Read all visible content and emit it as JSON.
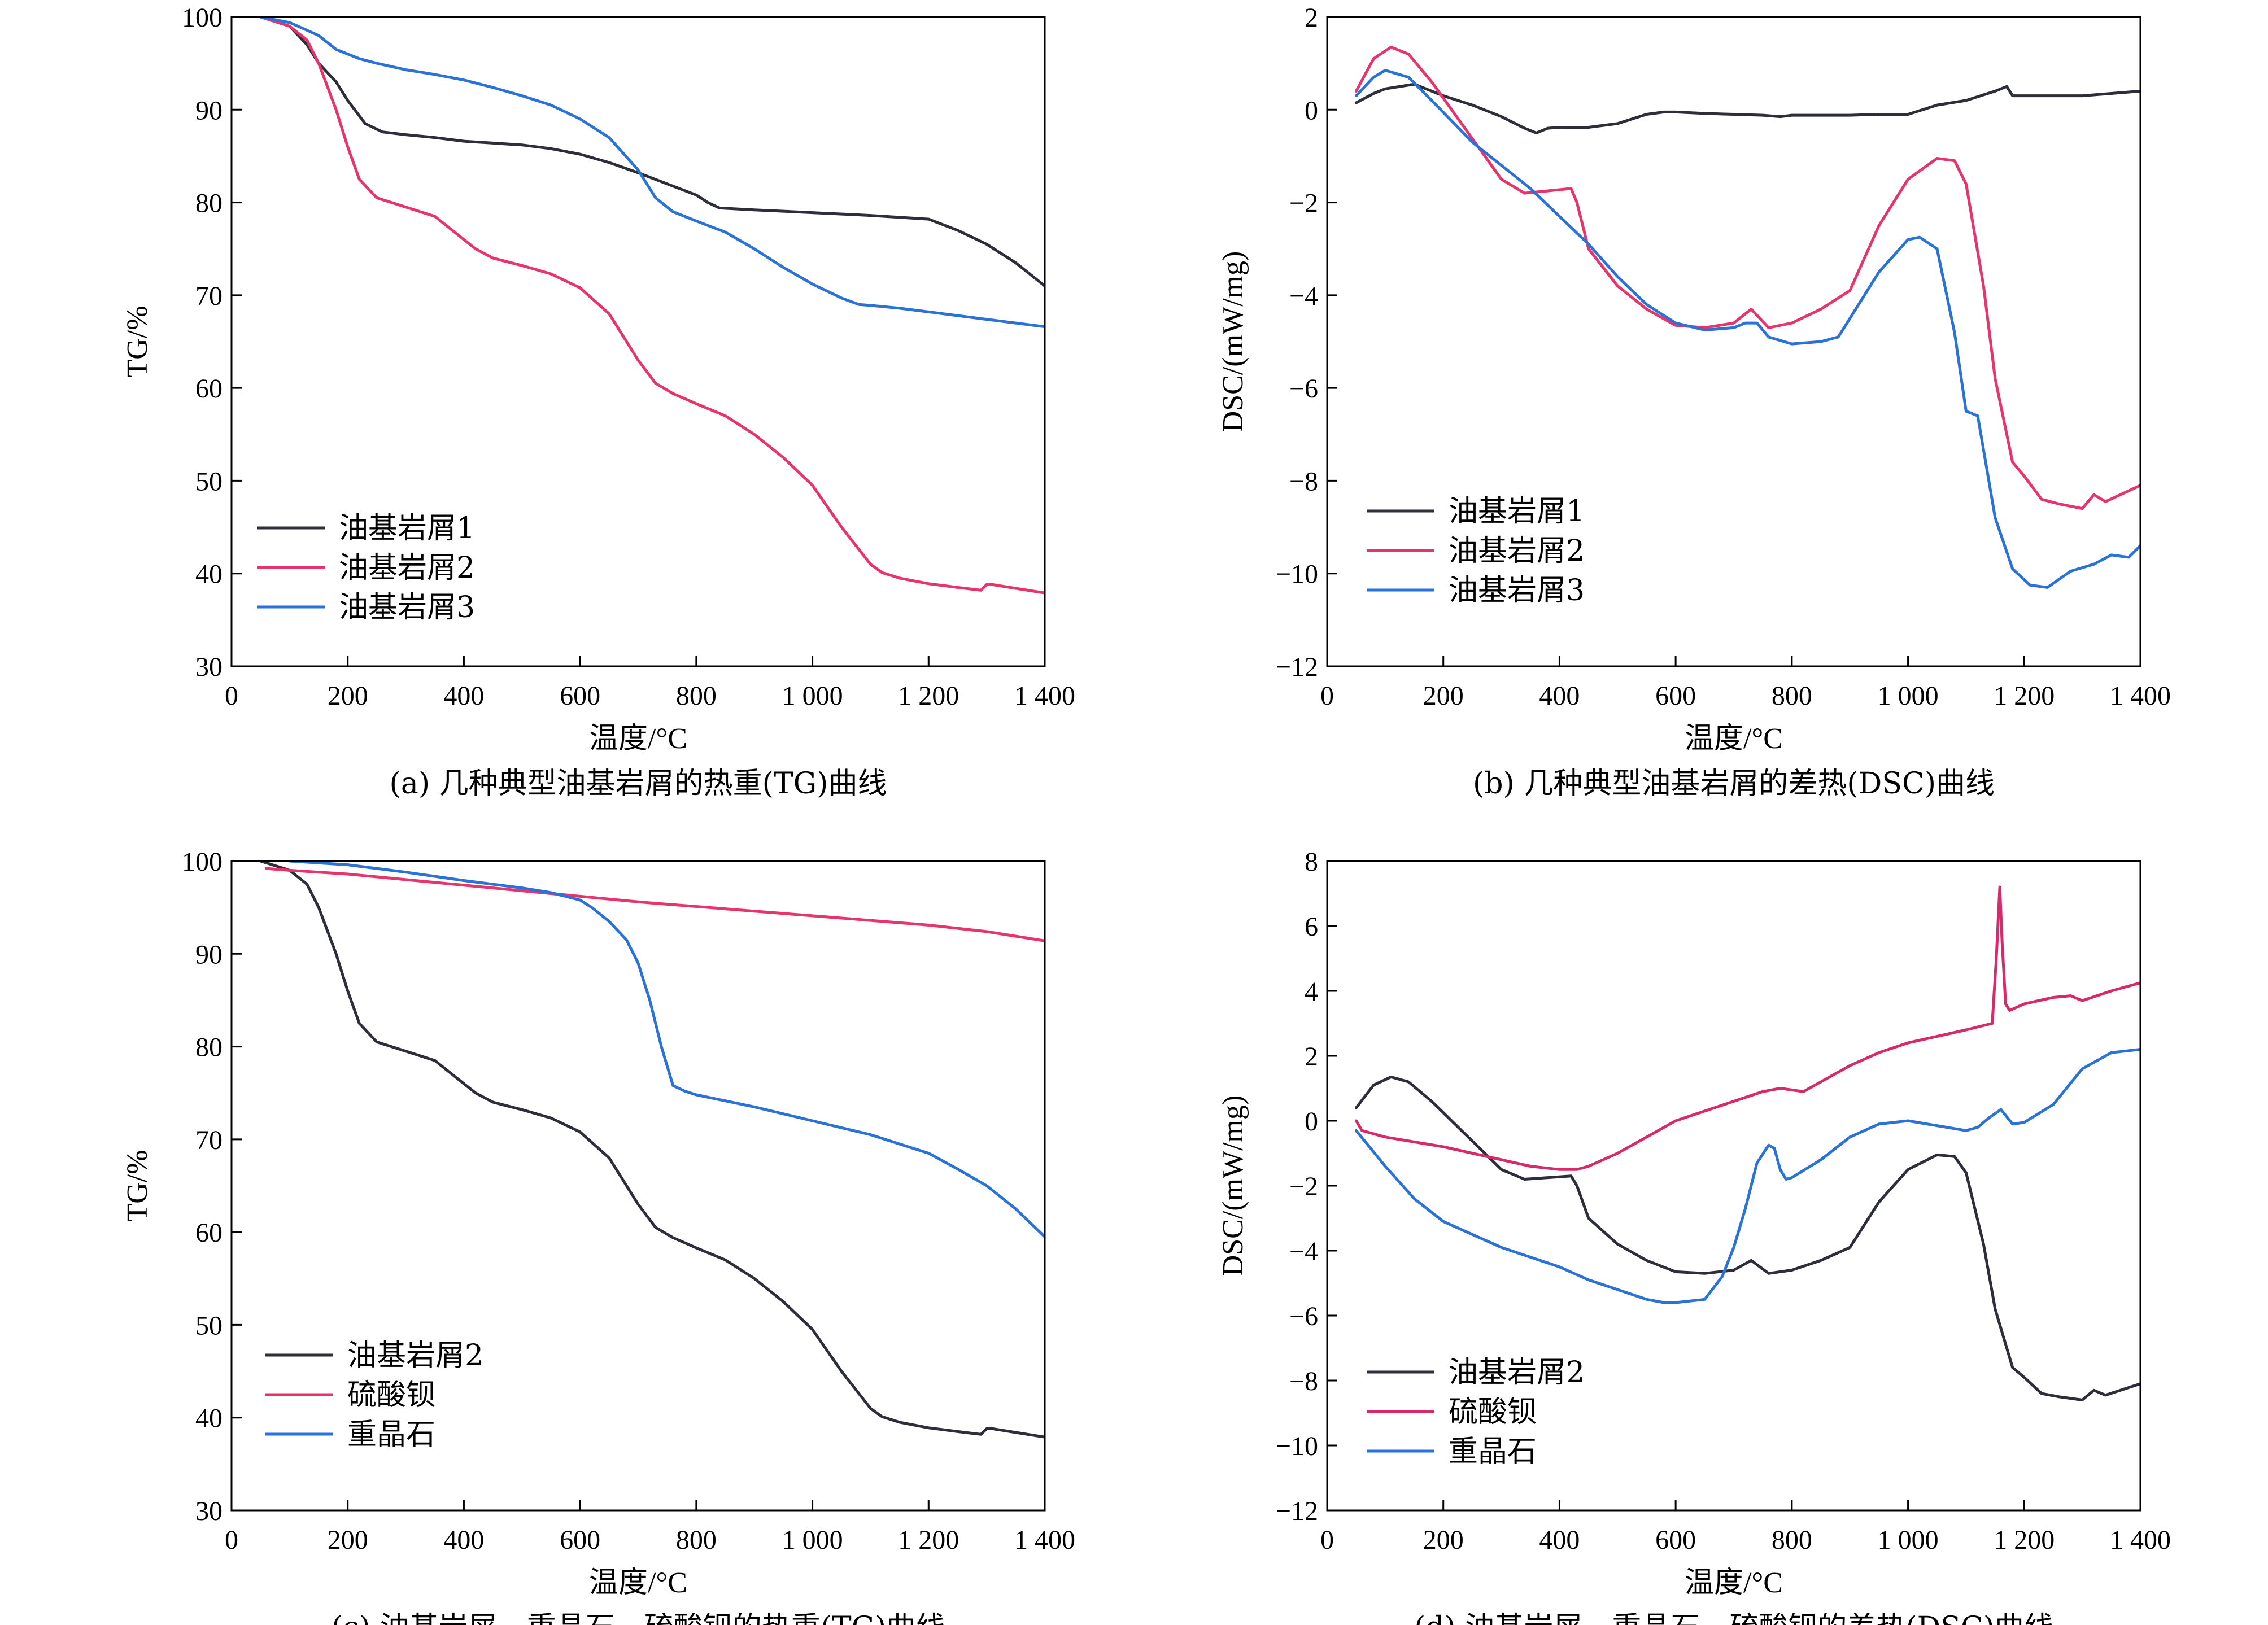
{
  "colors": {
    "dark": "#2e2e3a",
    "pink": "#e8336b",
    "blue": "#2a72d8",
    "magenta": "#d82a6a"
  },
  "chart_data": [
    {
      "type": "line",
      "title": "(a) 几种典型油基岩屑的热重(TG)曲线",
      "xlabel": "温度/°C",
      "ylabel": "TG/%",
      "xlim": [
        0,
        1400
      ],
      "ylim": [
        30,
        100
      ],
      "xticks": [
        0,
        200,
        400,
        600,
        800,
        1000,
        1200,
        1400
      ],
      "xtick_labels": [
        "0",
        "200",
        "400",
        "600",
        "800",
        "1 000",
        "1 200",
        "1 400"
      ],
      "yticks": [
        30,
        40,
        50,
        60,
        70,
        80,
        90,
        100
      ],
      "ytick_labels": [
        "30",
        "40",
        "50",
        "60",
        "70",
        "80",
        "90",
        "100"
      ],
      "legend": "upper-left-lower",
      "series": [
        {
          "name": "油基岩屑1",
          "color": "dark",
          "x": [
            50,
            100,
            130,
            150,
            180,
            200,
            230,
            260,
            300,
            350,
            400,
            450,
            500,
            550,
            600,
            650,
            700,
            750,
            800,
            820,
            840,
            900,
            1000,
            1100,
            1150,
            1200,
            1250,
            1300,
            1350,
            1400
          ],
          "y": [
            100,
            99,
            97,
            95,
            93,
            91,
            88.5,
            87.6,
            87.3,
            87,
            86.6,
            86.4,
            86.2,
            85.8,
            85.2,
            84.3,
            83.2,
            82,
            80.8,
            80,
            79.4,
            79.2,
            78.9,
            78.6,
            78.4,
            78.2,
            77,
            75.5,
            73.5,
            71
          ]
        },
        {
          "name": "油基岩屑2",
          "color": "pink",
          "x": [
            50,
            100,
            130,
            150,
            180,
            200,
            220,
            250,
            300,
            350,
            380,
            420,
            450,
            500,
            550,
            600,
            650,
            700,
            730,
            760,
            800,
            850,
            900,
            950,
            1000,
            1050,
            1100,
            1120,
            1150,
            1200,
            1250,
            1290,
            1300,
            1310,
            1350,
            1400
          ],
          "y": [
            100,
            99,
            97.5,
            95,
            90,
            86,
            82.5,
            80.5,
            79.5,
            78.5,
            77,
            75,
            74,
            73.2,
            72.3,
            70.8,
            68,
            63,
            60.5,
            59.4,
            58.3,
            57,
            55,
            52.5,
            49.5,
            45,
            41,
            40.1,
            39.5,
            38.9,
            38.5,
            38.2,
            38.8,
            38.8,
            38.4,
            37.9
          ]
        },
        {
          "name": "油基岩屑3",
          "color": "blue",
          "x": [
            50,
            100,
            150,
            180,
            220,
            250,
            300,
            350,
            400,
            450,
            500,
            550,
            600,
            650,
            700,
            730,
            760,
            800,
            850,
            900,
            950,
            1000,
            1050,
            1080,
            1100,
            1150,
            1200,
            1250,
            1300,
            1350,
            1400
          ],
          "y": [
            100,
            99.4,
            98,
            96.5,
            95.5,
            95,
            94.3,
            93.8,
            93.2,
            92.4,
            91.5,
            90.5,
            89,
            87,
            83.5,
            80.5,
            79,
            78,
            76.8,
            75,
            73,
            71.2,
            69.7,
            69,
            68.9,
            68.6,
            68.2,
            67.8,
            67.4,
            67,
            66.6
          ]
        }
      ],
      "legend_entries": [
        "油基岩屑1",
        "油基岩屑2",
        "油基岩屑3"
      ]
    },
    {
      "type": "line",
      "title": "(b) 几种典型油基岩屑的差热(DSC)曲线",
      "xlabel": "温度/°C",
      "ylabel": "DSC/(mW/mg)",
      "xlim": [
        0,
        1400
      ],
      "ylim": [
        -12,
        2
      ],
      "xticks": [
        0,
        200,
        400,
        600,
        800,
        1000,
        1200,
        1400
      ],
      "xtick_labels": [
        "0",
        "200",
        "400",
        "600",
        "800",
        "1 000",
        "1 200",
        "1 400"
      ],
      "yticks": [
        -12,
        -10,
        -8,
        -6,
        -4,
        -2,
        0,
        2
      ],
      "ytick_labels": [
        "−12",
        "−10",
        "−8",
        "−6",
        "−4",
        "−2",
        "0",
        "2"
      ],
      "legend": "lower-left",
      "series": [
        {
          "name": "油基岩屑1",
          "color": "dark",
          "x": [
            50,
            80,
            100,
            150,
            200,
            250,
            300,
            340,
            360,
            380,
            400,
            450,
            500,
            550,
            580,
            600,
            650,
            700,
            750,
            780,
            800,
            850,
            900,
            950,
            1000,
            1050,
            1100,
            1150,
            1170,
            1180,
            1200,
            1300,
            1400
          ],
          "y": [
            0.15,
            0.35,
            0.45,
            0.55,
            0.3,
            0.1,
            -0.15,
            -0.4,
            -0.5,
            -0.4,
            -0.38,
            -0.38,
            -0.3,
            -0.1,
            -0.05,
            -0.05,
            -0.08,
            -0.1,
            -0.12,
            -0.15,
            -0.12,
            -0.12,
            -0.12,
            -0.1,
            -0.1,
            0.1,
            0.2,
            0.4,
            0.5,
            0.3,
            0.3,
            0.3,
            0.4
          ]
        },
        {
          "name": "油基岩屑2",
          "color": "pink",
          "x": [
            50,
            80,
            110,
            140,
            180,
            220,
            260,
            300,
            340,
            380,
            420,
            430,
            450,
            500,
            550,
            600,
            650,
            700,
            720,
            730,
            760,
            800,
            850,
            900,
            950,
            1000,
            1050,
            1080,
            1100,
            1130,
            1150,
            1180,
            1200,
            1230,
            1260,
            1280,
            1300,
            1320,
            1340,
            1400
          ],
          "y": [
            0.4,
            1.1,
            1.35,
            1.2,
            0.6,
            -0.1,
            -0.8,
            -1.5,
            -1.8,
            -1.75,
            -1.7,
            -2.0,
            -3.0,
            -3.8,
            -4.3,
            -4.65,
            -4.7,
            -4.6,
            -4.4,
            -4.3,
            -4.7,
            -4.6,
            -4.3,
            -3.9,
            -2.5,
            -1.5,
            -1.05,
            -1.1,
            -1.6,
            -3.8,
            -5.8,
            -7.6,
            -7.9,
            -8.4,
            -8.5,
            -8.55,
            -8.6,
            -8.3,
            -8.45,
            -8.1
          ]
        },
        {
          "name": "油基岩屑3",
          "color": "blue",
          "x": [
            50,
            80,
            100,
            140,
            180,
            250,
            300,
            350,
            400,
            450,
            500,
            550,
            600,
            650,
            700,
            720,
            740,
            760,
            800,
            850,
            880,
            900,
            950,
            1000,
            1020,
            1050,
            1080,
            1100,
            1120,
            1150,
            1180,
            1210,
            1240,
            1280,
            1320,
            1350,
            1380,
            1400
          ],
          "y": [
            0.3,
            0.7,
            0.85,
            0.7,
            0.2,
            -0.7,
            -1.2,
            -1.7,
            -2.3,
            -2.9,
            -3.6,
            -4.2,
            -4.6,
            -4.75,
            -4.7,
            -4.6,
            -4.6,
            -4.9,
            -5.05,
            -5.0,
            -4.9,
            -4.5,
            -3.5,
            -2.8,
            -2.75,
            -3.0,
            -4.8,
            -6.5,
            -6.6,
            -8.8,
            -9.9,
            -10.25,
            -10.3,
            -9.95,
            -9.8,
            -9.6,
            -9.65,
            -9.4
          ]
        }
      ],
      "legend_entries": [
        "油基岩屑1",
        "油基岩屑2",
        "油基岩屑3"
      ]
    },
    {
      "type": "line",
      "title": "(c) 油基岩屑、重晶石、硫酸钡的热重(TG)曲线",
      "xlabel": "温度/°C",
      "ylabel": "TG/%",
      "xlim": [
        0,
        1400
      ],
      "ylim": [
        30,
        100
      ],
      "xticks": [
        0,
        200,
        400,
        600,
        800,
        1000,
        1200,
        1400
      ],
      "xtick_labels": [
        "0",
        "200",
        "400",
        "600",
        "800",
        "1 000",
        "1 200",
        "1 400"
      ],
      "yticks": [
        30,
        40,
        50,
        60,
        70,
        80,
        90,
        100
      ],
      "ytick_labels": [
        "30",
        "40",
        "50",
        "60",
        "70",
        "80",
        "90",
        "100"
      ],
      "legend": "lower-left",
      "series": [
        {
          "name": "油基岩屑2",
          "color": "dark",
          "x": [
            50,
            100,
            130,
            150,
            180,
            200,
            220,
            250,
            300,
            350,
            380,
            420,
            450,
            500,
            550,
            600,
            650,
            700,
            730,
            760,
            800,
            850,
            900,
            950,
            1000,
            1050,
            1100,
            1120,
            1150,
            1200,
            1250,
            1290,
            1300,
            1310,
            1350,
            1400
          ],
          "y": [
            100,
            99,
            97.5,
            95,
            90,
            86,
            82.5,
            80.5,
            79.5,
            78.5,
            77,
            75,
            74,
            73.2,
            72.3,
            70.8,
            68,
            63,
            60.5,
            59.4,
            58.3,
            57,
            55,
            52.5,
            49.5,
            45,
            41,
            40.1,
            39.5,
            38.9,
            38.5,
            38.2,
            38.8,
            38.8,
            38.4,
            37.9
          ]
        },
        {
          "name": "硫酸钡",
          "color": "pink",
          "x": [
            60,
            100,
            200,
            300,
            400,
            500,
            600,
            700,
            800,
            900,
            1000,
            1100,
            1200,
            1300,
            1400
          ],
          "y": [
            99.2,
            99,
            98.6,
            98,
            97.4,
            96.8,
            96.2,
            95.6,
            95.1,
            94.6,
            94.1,
            93.6,
            93.1,
            92.4,
            91.4
          ]
        },
        {
          "name": "重晶石",
          "color": "blue",
          "x": [
            100,
            200,
            300,
            400,
            500,
            550,
            600,
            620,
            650,
            680,
            700,
            720,
            740,
            760,
            780,
            800,
            900,
            1000,
            1100,
            1200,
            1250,
            1300,
            1350,
            1400
          ],
          "y": [
            100,
            99.6,
            98.8,
            97.9,
            97.1,
            96.6,
            95.8,
            95,
            93.5,
            91.5,
            89,
            85,
            80,
            75.8,
            75.2,
            74.8,
            73.5,
            72,
            70.5,
            68.5,
            66.8,
            65,
            62.5,
            59.5
          ]
        }
      ],
      "legend_entries": [
        "油基岩屑2",
        "硫酸钡",
        "重晶石"
      ]
    },
    {
      "type": "line",
      "title": "(d) 油基岩屑、重晶石、硫酸钡的差热(DSC)曲线",
      "xlabel": "温度/°C",
      "ylabel": "DSC/(mW/mg)",
      "xlim": [
        0,
        1400
      ],
      "ylim": [
        -12,
        8
      ],
      "xticks": [
        0,
        200,
        400,
        600,
        800,
        1000,
        1200,
        1400
      ],
      "xtick_labels": [
        "0",
        "200",
        "400",
        "600",
        "800",
        "1 000",
        "1 200",
        "1 400"
      ],
      "yticks": [
        -12,
        -10,
        -8,
        -6,
        -4,
        -2,
        0,
        2,
        4,
        6,
        8
      ],
      "ytick_labels": [
        "−12",
        "−10",
        "−8",
        "−6",
        "−4",
        "−2",
        "0",
        "2",
        "4",
        "6",
        "8"
      ],
      "legend": "lower-left",
      "series": [
        {
          "name": "油基岩屑2",
          "color": "dark",
          "x": [
            50,
            80,
            110,
            140,
            180,
            220,
            260,
            300,
            340,
            380,
            420,
            430,
            450,
            500,
            550,
            600,
            650,
            700,
            720,
            730,
            760,
            800,
            850,
            900,
            950,
            1000,
            1050,
            1080,
            1100,
            1130,
            1150,
            1180,
            1200,
            1230,
            1260,
            1280,
            1300,
            1320,
            1340,
            1400
          ],
          "y": [
            0.4,
            1.1,
            1.35,
            1.2,
            0.6,
            -0.1,
            -0.8,
            -1.5,
            -1.8,
            -1.75,
            -1.7,
            -2.0,
            -3.0,
            -3.8,
            -4.3,
            -4.65,
            -4.7,
            -4.6,
            -4.4,
            -4.3,
            -4.7,
            -4.6,
            -4.3,
            -3.9,
            -2.5,
            -1.5,
            -1.05,
            -1.1,
            -1.6,
            -3.8,
            -5.8,
            -7.6,
            -7.9,
            -8.4,
            -8.5,
            -8.55,
            -8.6,
            -8.3,
            -8.45,
            -8.1
          ]
        },
        {
          "name": "硫酸钡",
          "color": "magenta",
          "x": [
            50,
            60,
            100,
            200,
            300,
            350,
            400,
            430,
            450,
            500,
            550,
            600,
            650,
            700,
            750,
            780,
            800,
            820,
            850,
            900,
            950,
            1000,
            1050,
            1100,
            1145,
            1152,
            1158,
            1162,
            1168,
            1175,
            1200,
            1250,
            1280,
            1300,
            1350,
            1400
          ],
          "y": [
            0,
            -0.3,
            -0.5,
            -0.8,
            -1.2,
            -1.4,
            -1.5,
            -1.5,
            -1.4,
            -1.0,
            -0.5,
            0,
            0.3,
            0.6,
            0.9,
            1.0,
            0.95,
            0.9,
            1.2,
            1.7,
            2.1,
            2.4,
            2.6,
            2.8,
            3.0,
            5.0,
            7.2,
            5.5,
            3.6,
            3.4,
            3.6,
            3.8,
            3.85,
            3.7,
            4.0,
            4.25
          ]
        },
        {
          "name": "重晶石",
          "color": "blue",
          "x": [
            50,
            100,
            150,
            200,
            300,
            400,
            450,
            500,
            550,
            580,
            600,
            650,
            680,
            700,
            720,
            740,
            760,
            770,
            780,
            790,
            800,
            850,
            900,
            950,
            1000,
            1050,
            1100,
            1120,
            1140,
            1160,
            1180,
            1200,
            1250,
            1300,
            1350,
            1400
          ],
          "y": [
            -0.3,
            -1.4,
            -2.4,
            -3.1,
            -3.9,
            -4.5,
            -4.9,
            -5.2,
            -5.5,
            -5.6,
            -5.6,
            -5.5,
            -4.8,
            -3.9,
            -2.7,
            -1.3,
            -0.75,
            -0.85,
            -1.5,
            -1.8,
            -1.75,
            -1.2,
            -0.5,
            -0.1,
            0,
            -0.15,
            -0.3,
            -0.2,
            0.1,
            0.35,
            -0.1,
            -0.05,
            0.5,
            1.6,
            2.1,
            2.2
          ]
        }
      ],
      "legend_entries": [
        "油基岩屑2",
        "硫酸钡",
        "重晶石"
      ]
    }
  ]
}
